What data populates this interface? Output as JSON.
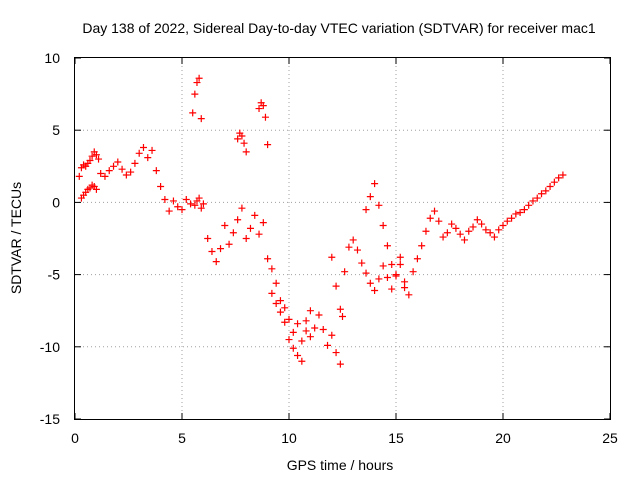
{
  "chart_data": {
    "type": "scatter",
    "title": "Day 138 of 2022, Sidereal Day-to-day VTEC variation (SDTVAR) for receiver mac1",
    "xlabel": "GPS time / hours",
    "ylabel": "SDTVAR / TECUs",
    "xlim": [
      0,
      25
    ],
    "ylim": [
      -15,
      10
    ],
    "xticks": [
      0,
      5,
      10,
      15,
      20,
      25
    ],
    "xtick_labels": [
      "0",
      "5",
      "10",
      "15",
      "20",
      "25"
    ],
    "yticks": [
      -15,
      -10,
      -5,
      0,
      5,
      10
    ],
    "ytick_labels": [
      "-15",
      "-10",
      "-5",
      "0",
      "5",
      "10"
    ],
    "grid": true,
    "marker": "plus",
    "color": "#ff0000",
    "series": [
      {
        "name": "SDTVAR",
        "x": [
          0.2,
          0.3,
          0.4,
          0.5,
          0.6,
          0.7,
          0.8,
          0.9,
          1.0,
          1.1,
          0.3,
          0.4,
          0.5,
          0.6,
          0.7,
          0.8,
          0.9,
          1.0,
          1.2,
          1.4,
          1.6,
          1.8,
          2.0,
          2.2,
          2.4,
          2.6,
          2.8,
          3.0,
          3.2,
          3.4,
          3.6,
          3.8,
          4.0,
          4.2,
          4.4,
          4.6,
          4.8,
          5.0,
          5.2,
          5.4,
          5.6,
          5.7,
          5.8,
          5.9,
          6.0,
          6.2,
          6.4,
          6.6,
          6.8,
          7.0,
          7.2,
          7.4,
          7.6,
          7.8,
          8.0,
          8.2,
          8.4,
          8.6,
          8.8,
          9.0,
          9.2,
          9.4,
          9.6,
          9.8,
          10.0,
          10.2,
          10.4,
          10.6,
          10.8,
          11.0,
          11.2,
          11.4,
          11.6,
          11.8,
          12.0,
          12.2,
          12.4,
          12.6,
          12.8,
          13.0,
          13.2,
          13.4,
          13.6,
          13.8,
          14.0,
          14.2,
          14.4,
          14.6,
          14.8,
          15.0,
          15.2,
          15.4,
          15.6,
          15.8,
          16.0,
          16.2,
          16.4,
          16.6,
          16.8,
          17.0,
          17.2,
          17.4,
          17.6,
          17.8,
          18.0,
          18.2,
          18.4,
          18.6,
          18.8,
          19.0,
          19.2,
          19.4,
          19.6,
          19.8,
          20.0,
          20.2,
          20.4,
          20.6,
          20.8,
          21.0,
          21.2,
          21.4,
          21.6,
          21.8,
          22.0,
          22.2,
          22.4,
          22.6,
          22.8,
          5.5,
          5.6,
          5.7,
          5.8,
          5.9,
          7.6,
          7.7,
          7.8,
          7.9,
          8.0,
          8.6,
          8.7,
          8.8,
          8.9,
          9.0,
          9.2,
          9.4,
          9.6,
          9.8,
          10.0,
          10.2,
          10.4,
          10.6,
          10.8,
          11.0,
          12.0,
          12.2,
          12.4,
          12.5,
          13.6,
          13.8,
          14.0,
          14.2,
          14.4,
          14.6,
          14.8,
          15.0,
          15.2,
          15.4
        ],
        "y": [
          1.8,
          2.4,
          2.6,
          2.5,
          2.7,
          2.9,
          3.2,
          3.5,
          3.3,
          3.0,
          0.3,
          0.5,
          0.7,
          0.9,
          1.0,
          1.2,
          1.1,
          0.9,
          2.0,
          1.8,
          2.2,
          2.5,
          2.8,
          2.3,
          1.9,
          2.1,
          2.7,
          3.4,
          3.8,
          3.1,
          3.6,
          2.2,
          1.1,
          0.2,
          -0.6,
          0.1,
          -0.3,
          -0.5,
          0.2,
          -0.1,
          -0.2,
          0.1,
          0.3,
          -0.4,
          -0.1,
          -2.5,
          -3.4,
          -4.1,
          -3.2,
          -1.6,
          -2.9,
          -2.1,
          -1.2,
          -0.4,
          -2.5,
          -1.8,
          -0.9,
          -2.2,
          -1.4,
          -3.9,
          -4.6,
          -5.6,
          -6.8,
          -7.3,
          -8.1,
          -9.0,
          -8.4,
          -9.6,
          -8.9,
          -9.3,
          -8.7,
          -7.8,
          -8.8,
          -9.9,
          -9.2,
          -10.4,
          -11.2,
          -4.8,
          -3.1,
          -2.6,
          -3.3,
          -4.2,
          -4.9,
          -5.6,
          -6.1,
          -5.3,
          -4.4,
          -5.2,
          -6.0,
          -5.1,
          -4.3,
          -5.5,
          -6.4,
          -4.8,
          -3.9,
          -3.0,
          -2.0,
          -1.1,
          -0.6,
          -1.3,
          -2.4,
          -2.1,
          -1.5,
          -1.8,
          -2.2,
          -2.6,
          -2.0,
          -1.7,
          -1.2,
          -1.5,
          -1.9,
          -2.1,
          -2.4,
          -1.9,
          -1.6,
          -1.3,
          -1.1,
          -0.8,
          -0.7,
          -0.5,
          -0.2,
          0.1,
          0.3,
          0.6,
          0.8,
          1.1,
          1.4,
          1.7,
          1.9,
          6.2,
          7.5,
          8.3,
          8.6,
          5.8,
          4.4,
          4.8,
          4.6,
          4.1,
          3.5,
          6.5,
          6.9,
          6.7,
          5.9,
          4.0,
          -6.3,
          -7.0,
          -7.6,
          -8.3,
          -9.5,
          -10.1,
          -10.6,
          -11.0,
          -8.2,
          -7.5,
          -3.8,
          -5.8,
          -7.4,
          -7.9,
          -0.5,
          0.4,
          1.3,
          -0.2,
          -1.6,
          -3.0,
          -4.3,
          -5.0,
          -3.8,
          -5.9
        ]
      }
    ]
  }
}
